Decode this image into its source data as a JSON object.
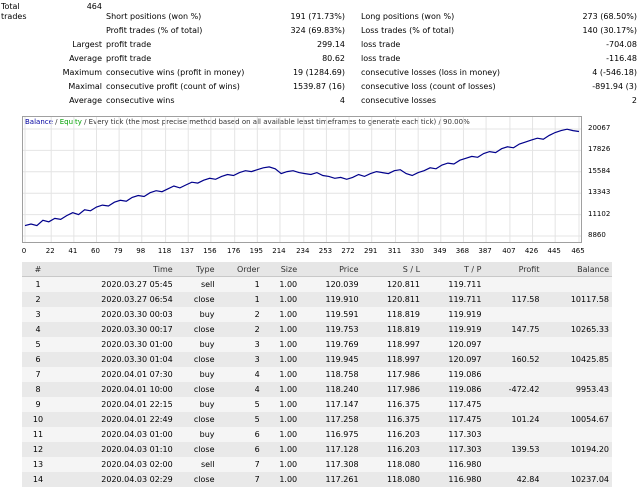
{
  "summary": {
    "total_trades_label": "Total trades",
    "total_trades_value": "464",
    "rows": [
      {
        "lbl_l": "",
        "lbl_r": "Short positions (won %)",
        "val_m": "191 (71.73%)",
        "lbl_m": "Long positions (won %)",
        "val_r": "273 (68.50%)"
      },
      {
        "lbl_l": "",
        "lbl_r": "Profit trades (% of total)",
        "val_m": "324 (69.83%)",
        "lbl_m": "Loss trades (% of total)",
        "val_r": "140 (30.17%)"
      },
      {
        "lbl_l": "Largest",
        "lbl_r": "profit trade",
        "val_m": "299.14",
        "lbl_m": "loss trade",
        "val_r": "-704.08"
      },
      {
        "lbl_l": "Average",
        "lbl_r": "profit trade",
        "val_m": "80.62",
        "lbl_m": "loss trade",
        "val_r": "-116.48"
      },
      {
        "lbl_l": "Maximum",
        "lbl_r": "consecutive wins (profit in money)",
        "val_m": "19 (1284.69)",
        "lbl_m": "consecutive losses (loss in money)",
        "val_r": "4 (-546.18)"
      },
      {
        "lbl_l": "Maximal",
        "lbl_r": "consecutive profit (count of wins)",
        "val_m": "1539.87 (16)",
        "lbl_m": "consecutive loss (count of losses)",
        "val_r": "-891.94 (3)"
      },
      {
        "lbl_l": "Average",
        "lbl_r": "consecutive wins",
        "val_m": "4",
        "lbl_m": "consecutive losses",
        "val_r": "2"
      }
    ]
  },
  "chart": {
    "legend_balance": "Balance",
    "legend_sep": " / ",
    "legend_equity": "Equity",
    "legend_rest": " / Every tick (the most precise method based on all available least timeframes to generate each tick)  / 90.00%",
    "colors": {
      "balance": "#00008b",
      "equity": "#00a000"
    }
  },
  "chart_data": {
    "type": "line",
    "title": "Balance / Equity / Every tick (the most precise method based on all available least timeframes to generate each tick)  / 90.00%",
    "x_ticks": [
      "0",
      "22",
      "41",
      "60",
      "79",
      "98",
      "118",
      "137",
      "156",
      "176",
      "195",
      "214",
      "234",
      "253",
      "272",
      "291",
      "311",
      "330",
      "349",
      "368",
      "387",
      "407",
      "426",
      "445",
      "465"
    ],
    "y_ticks": [
      "20067",
      "17826",
      "15584",
      "13343",
      "11102",
      "8860"
    ],
    "xlim": [
      0,
      465
    ],
    "ylim": [
      8860,
      20067
    ],
    "series": [
      {
        "name": "Balance",
        "x": [
          0,
          5,
          10,
          15,
          20,
          25,
          30,
          35,
          40,
          45,
          50,
          55,
          60,
          65,
          70,
          75,
          80,
          85,
          90,
          95,
          100,
          105,
          110,
          115,
          120,
          125,
          130,
          135,
          140,
          145,
          150,
          155,
          160,
          165,
          170,
          175,
          180,
          185,
          190,
          195,
          200,
          205,
          210,
          215,
          220,
          225,
          230,
          235,
          240,
          245,
          250,
          255,
          260,
          265,
          270,
          275,
          280,
          285,
          290,
          295,
          300,
          305,
          310,
          315,
          320,
          325,
          330,
          335,
          340,
          345,
          350,
          355,
          360,
          365,
          370,
          375,
          380,
          385,
          390,
          395,
          400,
          405,
          410,
          415,
          420,
          425,
          430,
          435,
          440,
          445,
          450,
          455,
          460,
          465
        ],
        "y": [
          9950,
          10117,
          9953,
          10500,
          10350,
          10700,
          10600,
          11000,
          11300,
          11100,
          11600,
          11500,
          11900,
          12100,
          12000,
          12400,
          12600,
          12500,
          12900,
          13100,
          13000,
          13400,
          13600,
          13500,
          13800,
          14100,
          13900,
          14200,
          14500,
          14400,
          14700,
          14900,
          14800,
          15100,
          15300,
          15200,
          15500,
          15700,
          15600,
          15800,
          16000,
          16100,
          15900,
          15400,
          15600,
          15700,
          15500,
          15400,
          15300,
          15500,
          15200,
          15100,
          14900,
          15000,
          14800,
          15000,
          15300,
          15100,
          15400,
          15600,
          15500,
          15400,
          15700,
          15800,
          15400,
          15200,
          15500,
          15700,
          16000,
          15900,
          16300,
          16500,
          16400,
          16800,
          17000,
          17200,
          17100,
          17500,
          17700,
          17600,
          18000,
          18200,
          18100,
          18500,
          18700,
          18900,
          19100,
          19000,
          19400,
          19700,
          19900,
          20050,
          19900,
          19800
        ]
      }
    ]
  },
  "table": {
    "headers": [
      "#",
      "Time",
      "Type",
      "Order",
      "Size",
      "Price",
      "S / L",
      "T / P",
      "Profit",
      "Balance"
    ],
    "rows": [
      [
        "1",
        "2020.03.27 05:45",
        "sell",
        "1",
        "1.00",
        "120.039",
        "120.811",
        "119.711",
        "",
        ""
      ],
      [
        "2",
        "2020.03.27 06:54",
        "close",
        "1",
        "1.00",
        "119.910",
        "120.811",
        "119.711",
        "117.58",
        "10117.58"
      ],
      [
        "3",
        "2020.03.30 00:03",
        "buy",
        "2",
        "1.00",
        "119.591",
        "118.819",
        "119.919",
        "",
        ""
      ],
      [
        "4",
        "2020.03.30 00:17",
        "close",
        "2",
        "1.00",
        "119.753",
        "118.819",
        "119.919",
        "147.75",
        "10265.33"
      ],
      [
        "5",
        "2020.03.30 01:00",
        "buy",
        "3",
        "1.00",
        "119.769",
        "118.997",
        "120.097",
        "",
        ""
      ],
      [
        "6",
        "2020.03.30 01:04",
        "close",
        "3",
        "1.00",
        "119.945",
        "118.997",
        "120.097",
        "160.52",
        "10425.85"
      ],
      [
        "7",
        "2020.04.01 07:30",
        "buy",
        "4",
        "1.00",
        "118.758",
        "117.986",
        "119.086",
        "",
        ""
      ],
      [
        "8",
        "2020.04.01 10:00",
        "close",
        "4",
        "1.00",
        "118.240",
        "117.986",
        "119.086",
        "-472.42",
        "9953.43"
      ],
      [
        "9",
        "2020.04.01 22:15",
        "buy",
        "5",
        "1.00",
        "117.147",
        "116.375",
        "117.475",
        "",
        ""
      ],
      [
        "10",
        "2020.04.01 22:49",
        "close",
        "5",
        "1.00",
        "117.258",
        "116.375",
        "117.475",
        "101.24",
        "10054.67"
      ],
      [
        "11",
        "2020.04.03 01:00",
        "buy",
        "6",
        "1.00",
        "116.975",
        "116.203",
        "117.303",
        "",
        ""
      ],
      [
        "12",
        "2020.04.03 01:10",
        "close",
        "6",
        "1.00",
        "117.128",
        "116.203",
        "117.303",
        "139.53",
        "10194.20"
      ],
      [
        "13",
        "2020.04.03 02:00",
        "sell",
        "7",
        "1.00",
        "117.308",
        "118.080",
        "116.980",
        "",
        ""
      ],
      [
        "14",
        "2020.04.03 02:29",
        "close",
        "7",
        "1.00",
        "117.261",
        "118.080",
        "116.980",
        "42.84",
        "10237.04"
      ]
    ]
  }
}
